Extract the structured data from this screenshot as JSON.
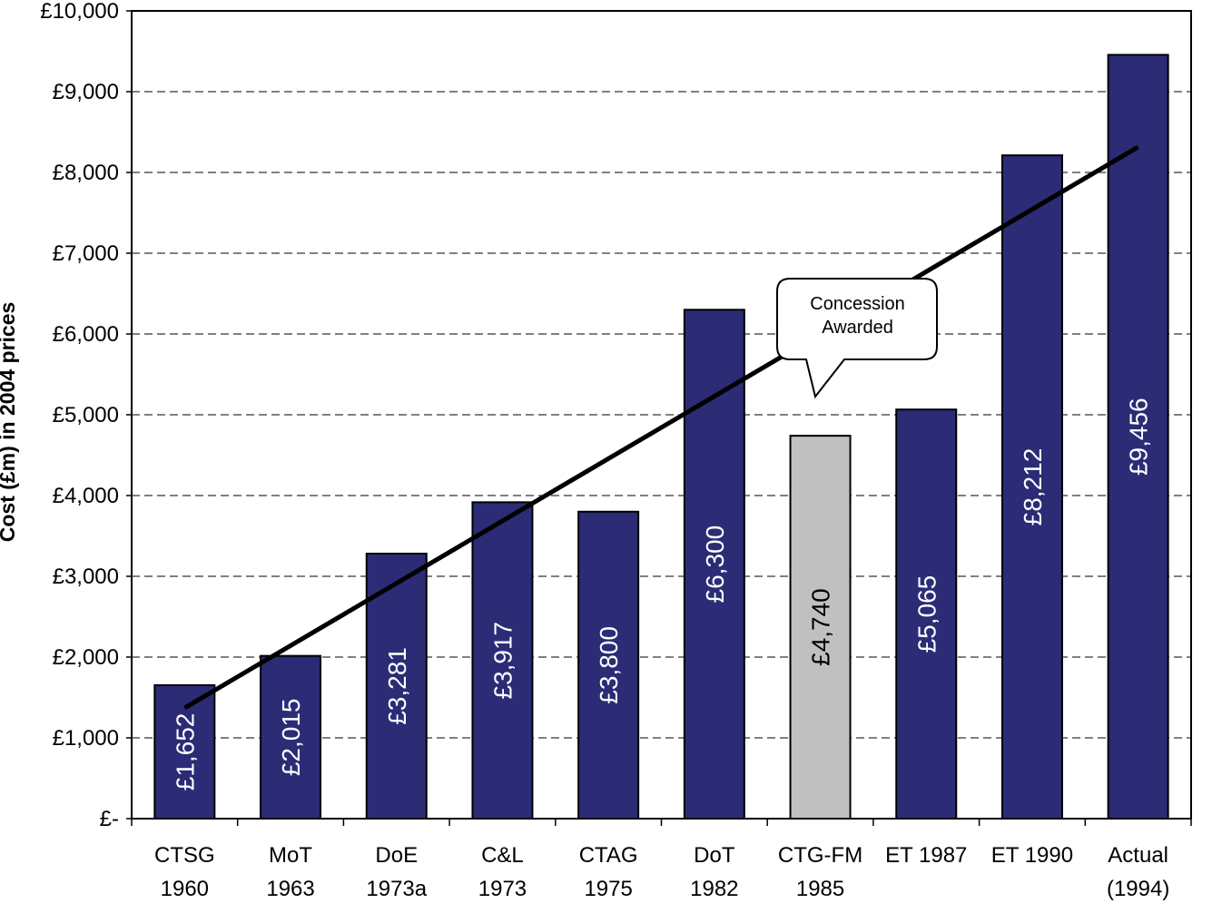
{
  "chart_data": {
    "type": "bar",
    "y_label": "Cost (£m) in 2004 prices",
    "categories": [
      [
        "CTSG",
        "1960"
      ],
      [
        "MoT",
        "1963"
      ],
      [
        "DoE",
        "1973a"
      ],
      [
        "C&L",
        "1973"
      ],
      [
        "CTAG",
        "1975"
      ],
      [
        "DoT",
        "1982"
      ],
      [
        "CTG-FM",
        "1985"
      ],
      [
        "ET 1987"
      ],
      [
        "ET 1990"
      ],
      [
        "Actual",
        "(1994)"
      ]
    ],
    "values": [
      1652,
      2015,
      3281,
      3917,
      3800,
      6300,
      4740,
      5065,
      8212,
      9456
    ],
    "value_labels": [
      "£1,652",
      "£2,015",
      "£3,281",
      "£3,917",
      "£3,800",
      "£6,300",
      "£4,740",
      "£5,065",
      "£8,212",
      "£9,456"
    ],
    "colors": [
      "#2b2c75",
      "#2b2c75",
      "#2b2c75",
      "#2b2c75",
      "#2b2c75",
      "#2b2c75",
      "#c0c0c0",
      "#2b2c75",
      "#2b2c75",
      "#2b2c75"
    ],
    "trend_line": {
      "values": [
        1370,
        8315
      ],
      "color": "#000000"
    },
    "annotation": {
      "lines": [
        "Concession",
        "Awarded"
      ],
      "category": 6
    },
    "ylim": [
      0,
      10000
    ],
    "yticks": [
      {
        "value": 0,
        "label": "£-"
      },
      {
        "value": 1000,
        "label": "£1,000"
      },
      {
        "value": 2000,
        "label": "£2,000"
      },
      {
        "value": 3000,
        "label": "£3,000"
      },
      {
        "value": 4000,
        "label": "£4,000"
      },
      {
        "value": 5000,
        "label": "£5,000"
      },
      {
        "value": 6000,
        "label": "£6,000"
      },
      {
        "value": 7000,
        "label": "£7,000"
      },
      {
        "value": 8000,
        "label": "£8,000"
      },
      {
        "value": 9000,
        "label": "£9,000"
      },
      {
        "value": 10000,
        "label": "£10,000"
      }
    ],
    "grid": true
  }
}
